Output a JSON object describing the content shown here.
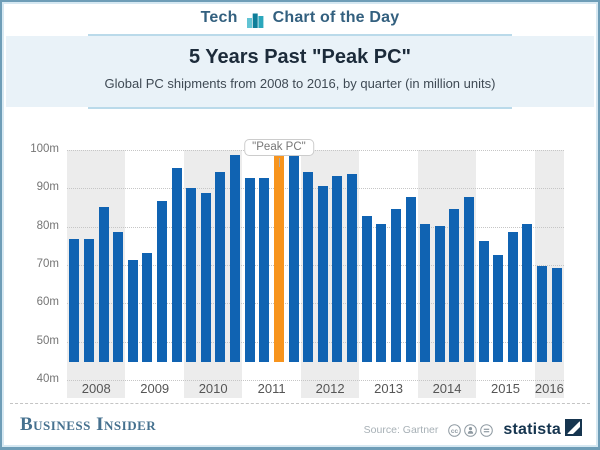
{
  "header": {
    "category": "Tech",
    "title": "Chart of the Day"
  },
  "title_block": {
    "title": "5 Years Past \"Peak PC\"",
    "subtitle": "Global PC shipments from 2008 to 2016, by quarter (in million units)"
  },
  "chart_data": {
    "type": "bar",
    "title": "5 Years Past \"Peak PC\"",
    "subtitle": "Global PC shipments from 2008 to 2016, by quarter (in million units)",
    "unit": "million units",
    "ylim": [
      40,
      100
    ],
    "ytick_step": 10,
    "ytick_labels": [
      "40m",
      "50m",
      "60m",
      "70m",
      "80m",
      "90m",
      "100m"
    ],
    "grid": "dotted-horizontal",
    "legend": "none",
    "x_tick_labels": [
      "2008",
      "2009",
      "2010",
      "2011",
      "2012",
      "2013",
      "2014",
      "2015",
      "2016"
    ],
    "years": [
      {
        "year": "2008",
        "values": [
          72,
          72,
          80.5,
          74
        ]
      },
      {
        "year": "2009",
        "values": [
          66.5,
          68.5,
          82,
          90.5
        ]
      },
      {
        "year": "2010",
        "values": [
          85.5,
          84,
          89.5,
          94
        ]
      },
      {
        "year": "2011",
        "values": [
          88,
          88,
          95.5,
          95
        ]
      },
      {
        "year": "2012",
        "values": [
          89.5,
          86,
          88.5,
          89
        ]
      },
      {
        "year": "2013",
        "values": [
          78,
          76,
          80,
          83
        ]
      },
      {
        "year": "2014",
        "values": [
          76,
          75.5,
          80,
          83
        ]
      },
      {
        "year": "2015",
        "values": [
          71.5,
          68,
          74,
          76
        ]
      },
      {
        "year": "2016",
        "values": [
          65,
          64.5
        ]
      }
    ],
    "highlight": {
      "year": "2011",
      "quarter_index": 2,
      "label": "\"Peak PC\"",
      "value": 95.5
    },
    "colors": {
      "bar": "#1063b2",
      "highlight": "#f7941d",
      "band_shade": "#ececec",
      "band_plain": "#ffffff"
    }
  },
  "annotation": {
    "peak_label": "\"Peak PC\""
  },
  "footer": {
    "brand": "Business Insider",
    "source": "Source: Gartner",
    "license_icons": [
      "cc",
      "by",
      "nd"
    ],
    "statista": "statista"
  }
}
